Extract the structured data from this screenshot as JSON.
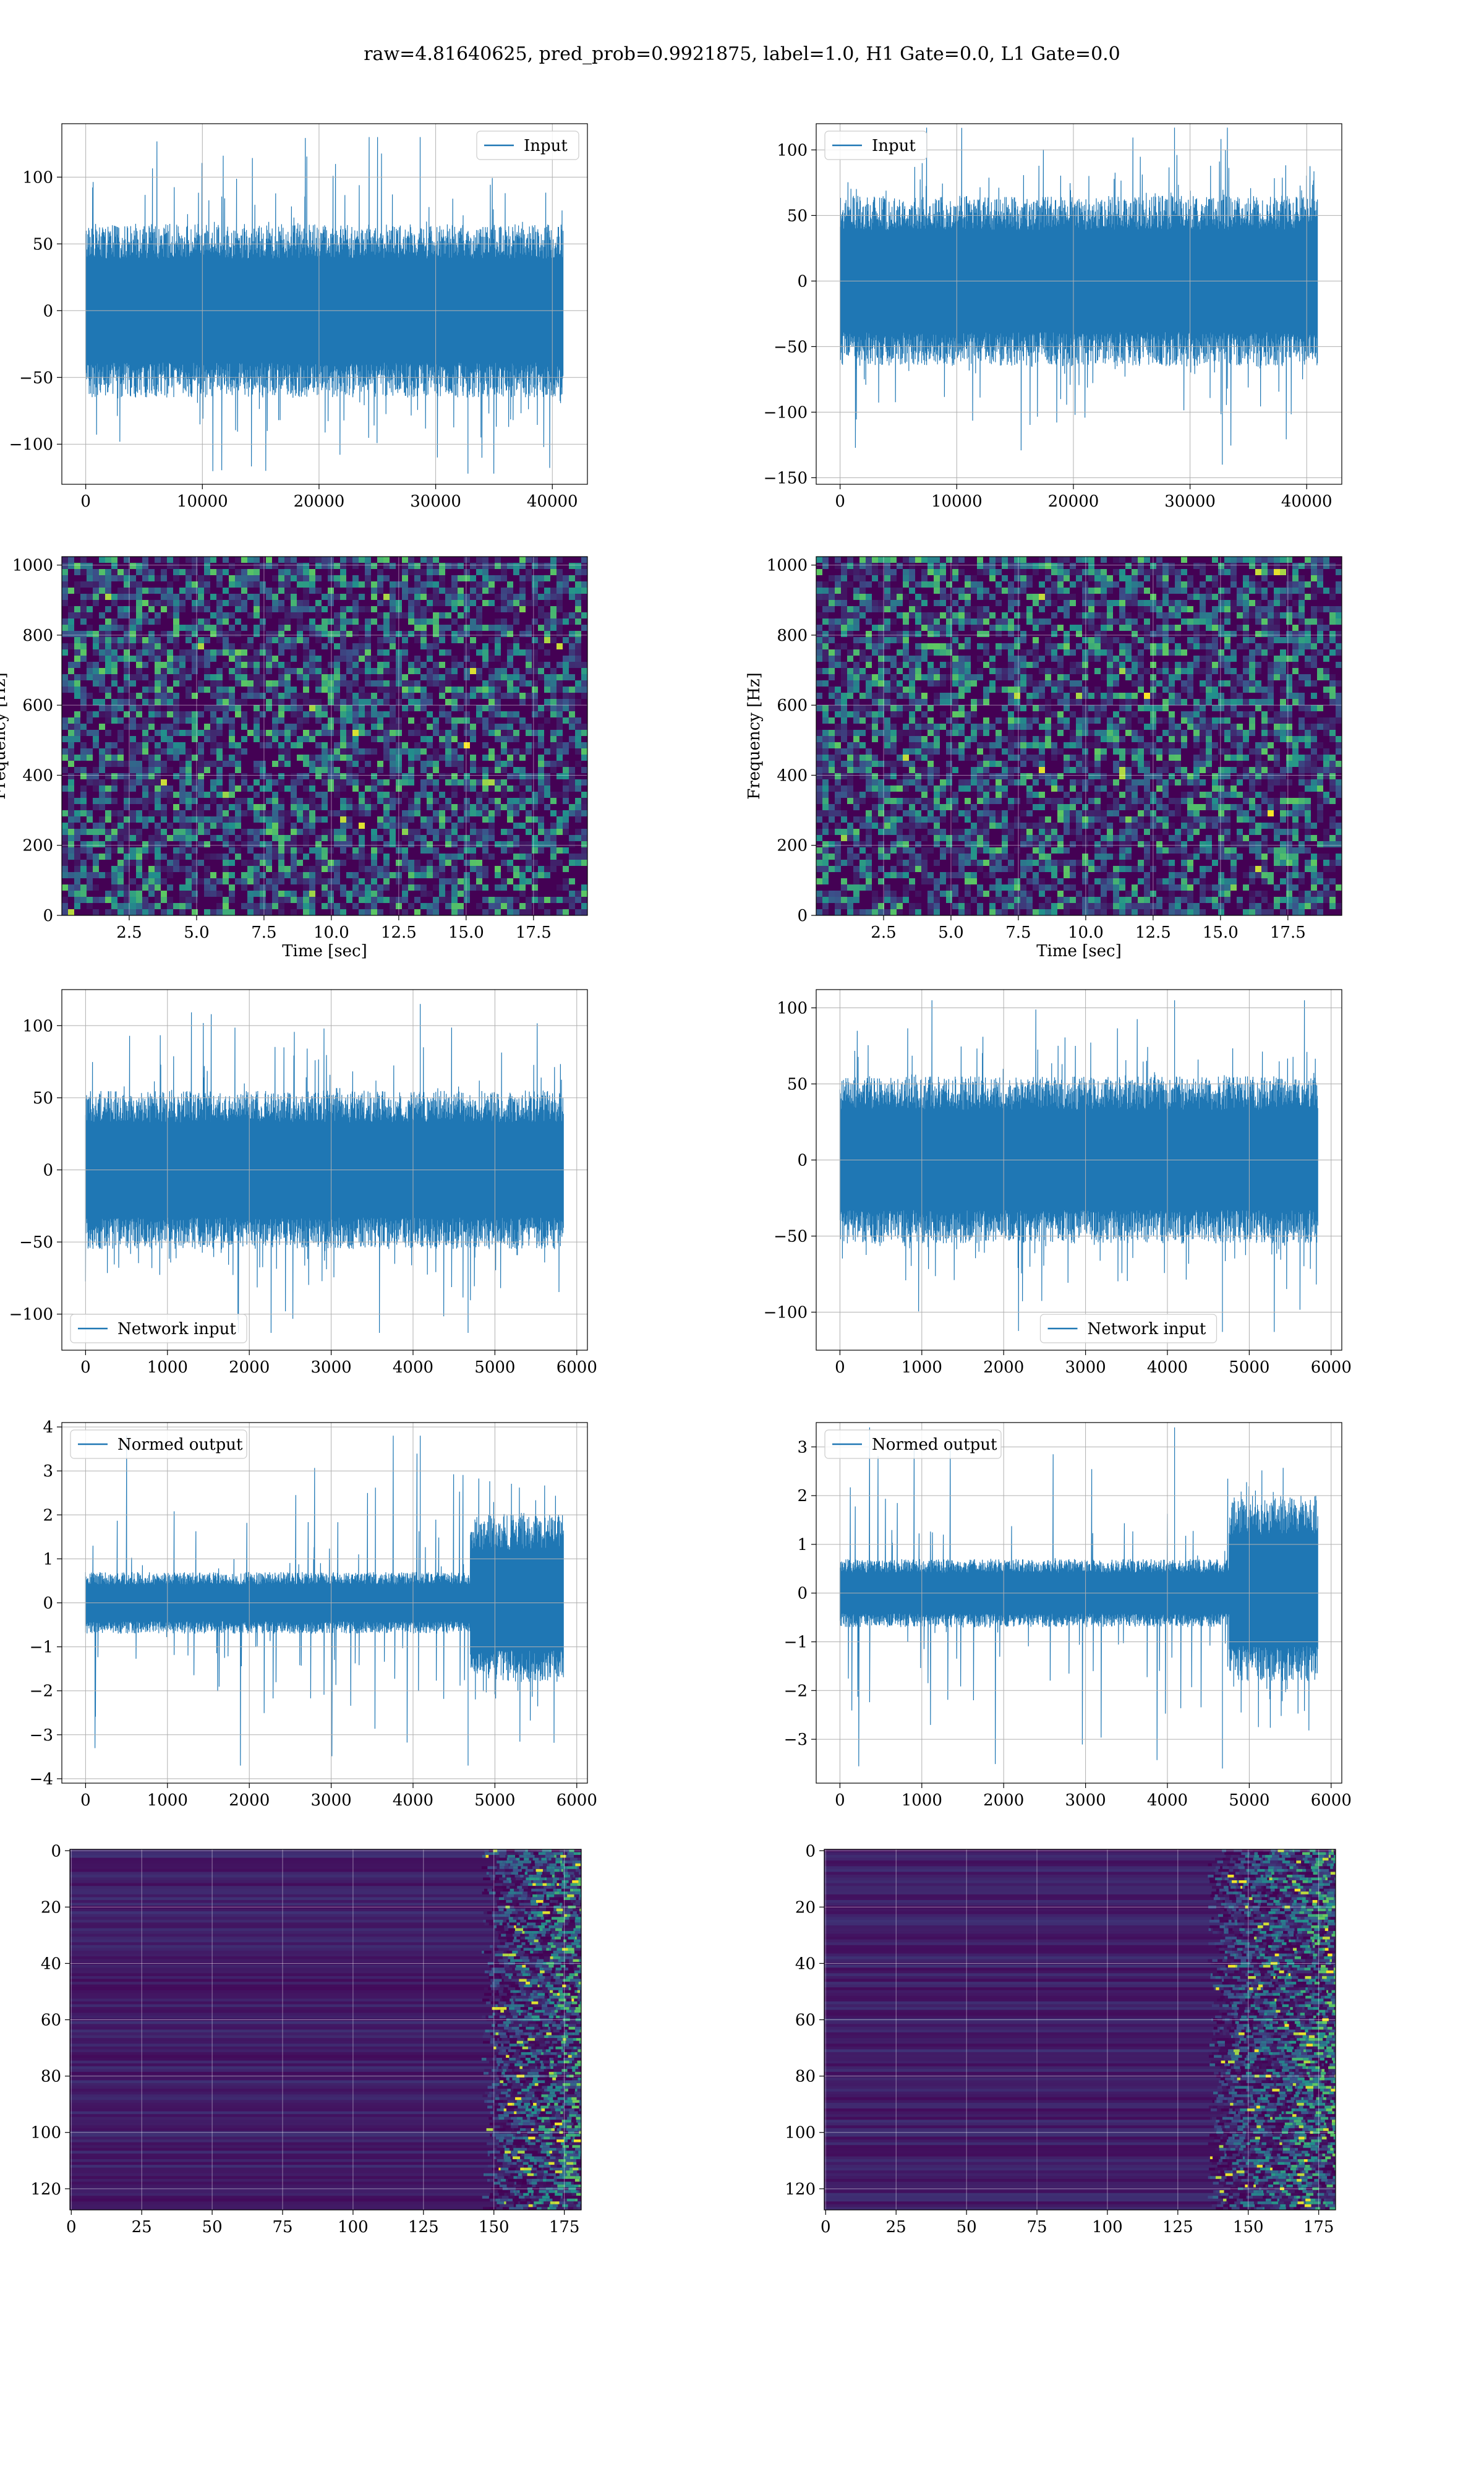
{
  "title": "raw=4.81640625, pred_prob=0.9921875, label=1.0, H1 Gate=0.0, L1 Gate=0.0",
  "colors": {
    "line": "#1f77b4",
    "grid": "#b0b0b0",
    "viridis_dark": "#440154",
    "viridis_mid": "#21918c",
    "viridis_bright": "#fde725"
  },
  "chart_data": [
    {
      "id": "input_h1",
      "type": "line",
      "xlim": [
        -2048,
        43008
      ],
      "ylim": [
        -130,
        140
      ],
      "xticks": [
        0,
        10000,
        20000,
        30000,
        40000
      ],
      "yticks": [
        -100,
        -50,
        0,
        50,
        100
      ],
      "xtick_labels": [
        "0",
        "10000",
        "20000",
        "30000",
        "40000"
      ],
      "ytick_labels": [
        "−100",
        "−50",
        "0",
        "50",
        "100"
      ],
      "series": [
        {
          "name": "Input",
          "x_range": [
            0,
            40960
          ],
          "band": [
            -65,
            65
          ],
          "min": -122,
          "max": 130
        }
      ],
      "legend": "upper right",
      "grid": true
    },
    {
      "id": "input_l1",
      "type": "line",
      "xlim": [
        -2048,
        43008
      ],
      "ylim": [
        -155,
        120
      ],
      "xticks": [
        0,
        10000,
        20000,
        30000,
        40000
      ],
      "yticks": [
        -150,
        -100,
        -50,
        0,
        50,
        100
      ],
      "xtick_labels": [
        "0",
        "10000",
        "20000",
        "30000",
        "40000"
      ],
      "ytick_labels": [
        "−150",
        "−100",
        "−50",
        "0",
        "50",
        "100"
      ],
      "series": [
        {
          "name": "Input",
          "x_range": [
            0,
            40960
          ],
          "band": [
            -65,
            65
          ],
          "min": -140,
          "max": 117
        }
      ],
      "legend": "upper left",
      "grid": true
    },
    {
      "id": "spec_h1",
      "type": "heatmap",
      "xlim": [
        0,
        19.5
      ],
      "ylim": [
        0,
        1024
      ],
      "xticks": [
        2.5,
        5.0,
        7.5,
        10.0,
        12.5,
        15.0,
        17.5
      ],
      "yticks": [
        0,
        200,
        400,
        600,
        800,
        1000
      ],
      "xtick_labels": [
        "2.5",
        "5.0",
        "7.5",
        "10.0",
        "12.5",
        "15.0",
        "17.5"
      ],
      "ytick_labels": [
        "0",
        "200",
        "400",
        "600",
        "800",
        "1000"
      ],
      "xlabel": "Time [sec]",
      "ylabel": "Frequency [Hz]",
      "colormap": "viridis",
      "grid": true
    },
    {
      "id": "spec_l1",
      "type": "heatmap",
      "xlim": [
        0,
        19.5
      ],
      "ylim": [
        0,
        1024
      ],
      "xticks": [
        2.5,
        5.0,
        7.5,
        10.0,
        12.5,
        15.0,
        17.5
      ],
      "yticks": [
        0,
        200,
        400,
        600,
        800,
        1000
      ],
      "xtick_labels": [
        "2.5",
        "5.0",
        "7.5",
        "10.0",
        "12.5",
        "15.0",
        "17.5"
      ],
      "ytick_labels": [
        "0",
        "200",
        "400",
        "600",
        "800",
        "1000"
      ],
      "xlabel": "Time [sec]",
      "ylabel": "Frequency [Hz]",
      "colormap": "viridis",
      "grid": true
    },
    {
      "id": "netin_h1",
      "type": "line",
      "xlim": [
        -290,
        6130
      ],
      "ylim": [
        -125,
        125
      ],
      "xticks": [
        0,
        1000,
        2000,
        3000,
        4000,
        5000,
        6000
      ],
      "yticks": [
        -100,
        -50,
        0,
        50,
        100
      ],
      "xtick_labels": [
        "0",
        "1000",
        "2000",
        "3000",
        "4000",
        "5000",
        "6000"
      ],
      "ytick_labels": [
        "−100",
        "−50",
        "0",
        "50",
        "100"
      ],
      "series": [
        {
          "name": "Network input",
          "x_range": [
            0,
            5840
          ],
          "band": [
            -55,
            55
          ],
          "min": -113,
          "max": 115
        }
      ],
      "legend": "lower left",
      "grid": true
    },
    {
      "id": "netin_l1",
      "type": "line",
      "xlim": [
        -290,
        6130
      ],
      "ylim": [
        -125,
        112
      ],
      "xticks": [
        0,
        1000,
        2000,
        3000,
        4000,
        5000,
        6000
      ],
      "yticks": [
        -100,
        -50,
        0,
        50,
        100
      ],
      "xtick_labels": [
        "0",
        "1000",
        "2000",
        "3000",
        "4000",
        "5000",
        "6000"
      ],
      "ytick_labels": [
        "−100",
        "−50",
        "0",
        "50",
        "100"
      ],
      "series": [
        {
          "name": "Network input",
          "x_range": [
            0,
            5840
          ],
          "band": [
            -55,
            55
          ],
          "min": -113,
          "max": 105
        }
      ],
      "legend": "lower center",
      "grid": true
    },
    {
      "id": "normout_h1",
      "type": "line",
      "xlim": [
        -290,
        6130
      ],
      "ylim": [
        -4.1,
        4.1
      ],
      "xticks": [
        0,
        1000,
        2000,
        3000,
        4000,
        5000,
        6000
      ],
      "yticks": [
        -4,
        -3,
        -2,
        -1,
        0,
        1,
        2,
        3,
        4
      ],
      "xtick_labels": [
        "0",
        "1000",
        "2000",
        "3000",
        "4000",
        "5000",
        "6000"
      ],
      "ytick_labels": [
        "−4",
        "−3",
        "−2",
        "−1",
        "0",
        "1",
        "2",
        "3",
        "4"
      ],
      "series": [
        {
          "name": "Normed output",
          "x_range": [
            0,
            5840
          ],
          "band": [
            -0.7,
            0.7
          ],
          "burst_start": 4700,
          "burst_band": [
            -1.8,
            2.0
          ],
          "min": -3.7,
          "max": 3.8
        }
      ],
      "legend": "upper left",
      "grid": true
    },
    {
      "id": "normout_l1",
      "type": "line",
      "xlim": [
        -290,
        6130
      ],
      "ylim": [
        -3.9,
        3.5
      ],
      "xticks": [
        0,
        1000,
        2000,
        3000,
        4000,
        5000,
        6000
      ],
      "yticks": [
        -3,
        -2,
        -1,
        0,
        1,
        2,
        3
      ],
      "xtick_labels": [
        "0",
        "1000",
        "2000",
        "3000",
        "4000",
        "5000",
        "6000"
      ],
      "ytick_labels": [
        "−3",
        "−2",
        "−1",
        "0",
        "1",
        "2",
        "3"
      ],
      "series": [
        {
          "name": "Normed output",
          "x_range": [
            0,
            5840
          ],
          "band": [
            -0.7,
            0.7
          ],
          "burst_start": 4750,
          "burst_band": [
            -1.8,
            2.0
          ],
          "min": -3.6,
          "max": 3.4
        }
      ],
      "legend": "upper left",
      "grid": true
    },
    {
      "id": "feat_h1",
      "type": "heatmap",
      "xlim": [
        -0.5,
        181
      ],
      "ylim": [
        127.5,
        -0.5
      ],
      "xticks": [
        0,
        25,
        50,
        75,
        100,
        125,
        150,
        175
      ],
      "yticks": [
        0,
        20,
        40,
        60,
        80,
        100,
        120
      ],
      "xtick_labels": [
        "0",
        "25",
        "50",
        "75",
        "100",
        "125",
        "150",
        "175"
      ],
      "ytick_labels": [
        "0",
        "20",
        "40",
        "60",
        "80",
        "100",
        "120"
      ],
      "colormap": "viridis",
      "active_from_col": 150,
      "grid": true
    },
    {
      "id": "feat_l1",
      "type": "heatmap",
      "xlim": [
        -0.5,
        181
      ],
      "ylim": [
        127.5,
        -0.5
      ],
      "xticks": [
        0,
        25,
        50,
        75,
        100,
        125,
        150,
        175
      ],
      "yticks": [
        0,
        20,
        40,
        60,
        80,
        100,
        120
      ],
      "xtick_labels": [
        "0",
        "25",
        "50",
        "75",
        "100",
        "125",
        "150",
        "175"
      ],
      "ytick_labels": [
        "0",
        "20",
        "40",
        "60",
        "80",
        "100",
        "120"
      ],
      "colormap": "viridis",
      "active_from_col": 140,
      "grid": true
    }
  ]
}
